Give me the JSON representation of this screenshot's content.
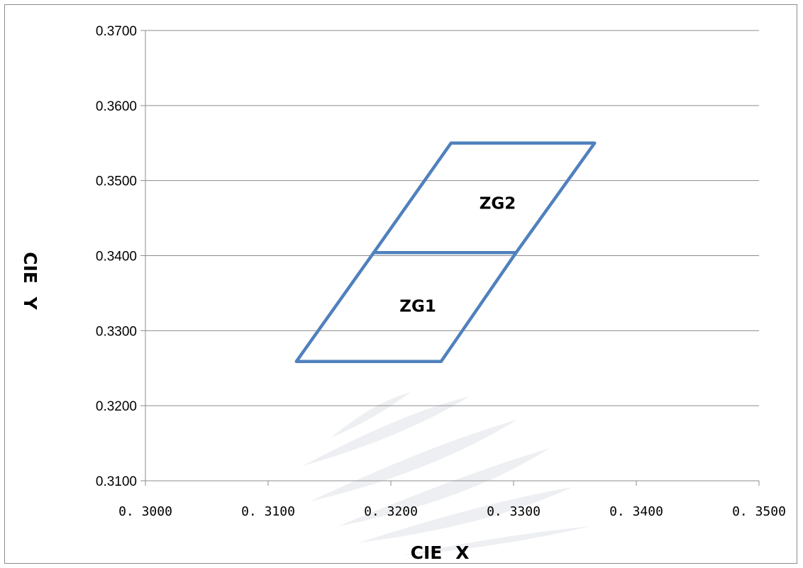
{
  "chart_data": {
    "type": "line",
    "title": "",
    "xlabel": "CIE X",
    "ylabel": "CIE Y",
    "xlim": [
      0.3,
      0.35
    ],
    "ylim": [
      0.31,
      0.37
    ],
    "x_ticks": [
      "0. 3000",
      "0. 3100",
      "0. 3200",
      "0. 3300",
      "0. 3400",
      "0. 3500"
    ],
    "y_ticks": [
      "0.3100",
      "0.3200",
      "0.3300",
      "0.3400",
      "0.3500",
      "0.3600",
      "0.3700"
    ],
    "grid": "horizontal",
    "legend": "none",
    "series": [
      {
        "label": "ZG1",
        "label_at": {
          "x": 0.3222,
          "y": 0.3333
        },
        "points": [
          {
            "x": 0.3123,
            "y": 0.3259
          },
          {
            "x": 0.3241,
            "y": 0.3259
          },
          {
            "x": 0.3302,
            "y": 0.3404
          },
          {
            "x": 0.3186,
            "y": 0.3404
          },
          {
            "x": 0.3123,
            "y": 0.3259
          }
        ]
      },
      {
        "label": "ZG2",
        "label_at": {
          "x": 0.3287,
          "y": 0.347
        },
        "points": [
          {
            "x": 0.3186,
            "y": 0.3404
          },
          {
            "x": 0.3302,
            "y": 0.3404
          },
          {
            "x": 0.3366,
            "y": 0.355
          },
          {
            "x": 0.3249,
            "y": 0.355
          },
          {
            "x": 0.3186,
            "y": 0.3404
          }
        ]
      }
    ],
    "colors": {
      "series": "#4f81bd",
      "grid": "#8c8c8c",
      "watermark": "#e7eaee"
    }
  }
}
